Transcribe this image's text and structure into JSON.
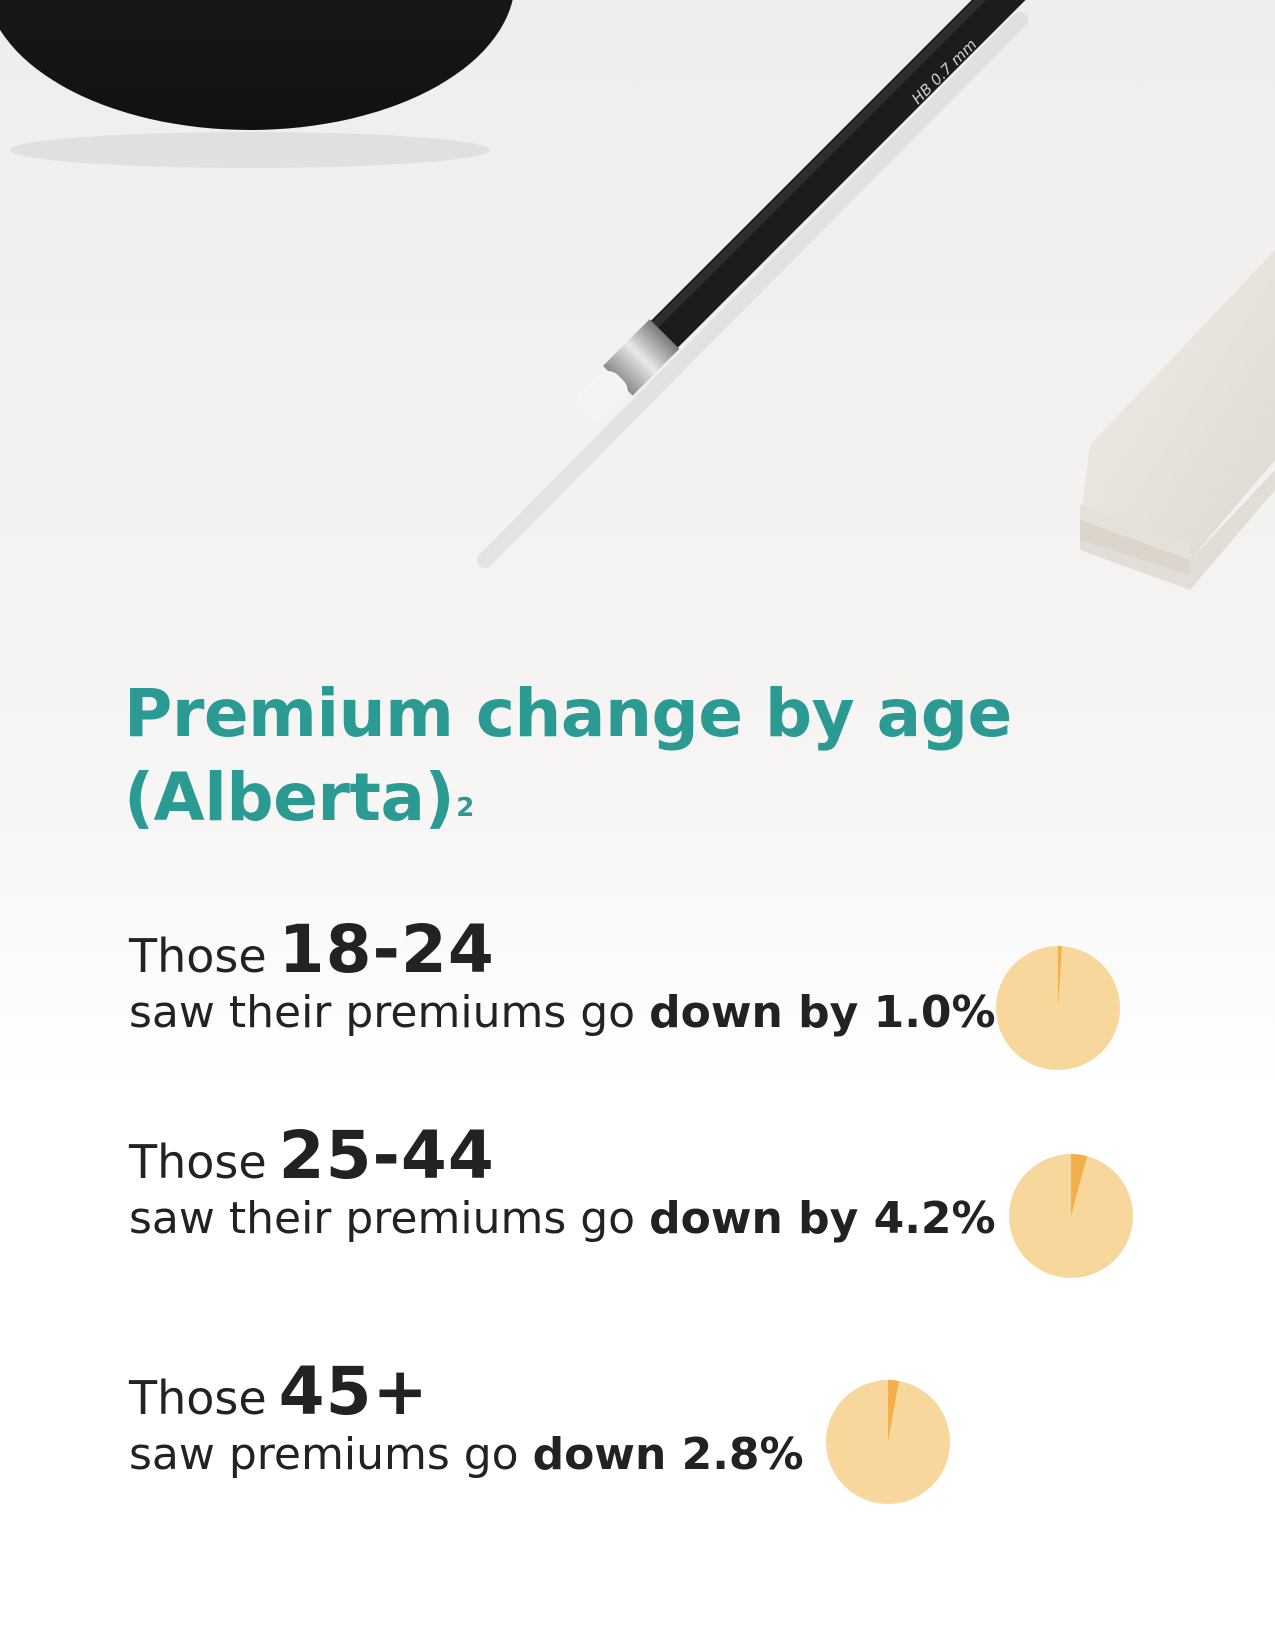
{
  "photo": {
    "pencil_imprint": "HB 0.7 mm"
  },
  "title": {
    "main": "Premium change by age",
    "line2": "(Alberta)",
    "footnote": "2"
  },
  "stats": [
    {
      "prefix": "Those",
      "age": "18-24",
      "text": "saw their premiums go",
      "bold": "down by 1.0%",
      "percent": 1.0
    },
    {
      "prefix": "Those",
      "age": "25-44",
      "text": "saw their premiums go",
      "bold": "down by 4.2%",
      "percent": 4.2
    },
    {
      "prefix": "Those",
      "age": "45+",
      "text": "saw premiums go",
      "bold": "down 2.8%",
      "percent": 2.8
    }
  ],
  "colors": {
    "title": "#2a9a93",
    "pie_fill": "#f8d79c",
    "pie_slice": "#f2b04d",
    "text": "#222222"
  }
}
